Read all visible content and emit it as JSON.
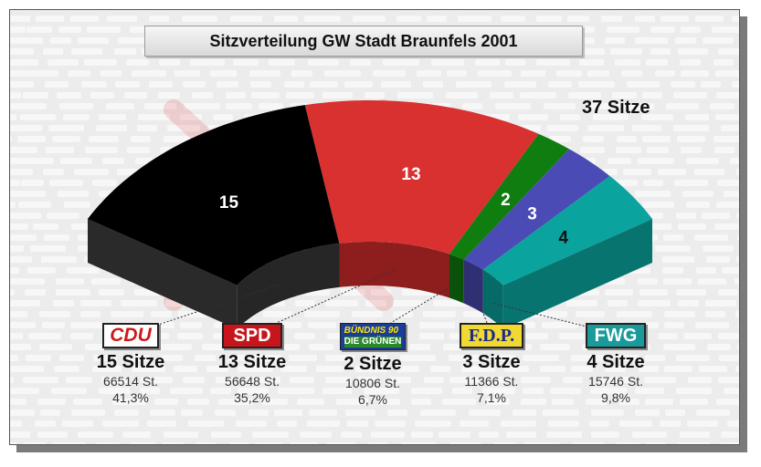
{
  "chart_data": {
    "type": "pie",
    "title": "Sitzverteilung GW Stadt Braunfels 2001",
    "total_label": "37 Sitze",
    "total_seats": 37,
    "parties": [
      {
        "name": "CDU",
        "seats": 15,
        "seats_label": "15 Sitze",
        "votes_label": "66514 St.",
        "pct_label": "41,3%",
        "color": "#000000",
        "side": "#2a2a2a",
        "bottom": "#262626"
      },
      {
        "name": "SPD",
        "seats": 13,
        "seats_label": "13 Sitze",
        "votes_label": "56648 St.",
        "pct_label": "35,2%",
        "color": "#d93030",
        "side": "#9c2020",
        "bottom": "#8e1d1d"
      },
      {
        "name": "BÜNDNIS 90 DIE GRÜNEN",
        "seats": 2,
        "seats_label": "2 Sitze",
        "votes_label": "10806 St.",
        "pct_label": "6,7%",
        "color": "#0f7d0f",
        "side": "#0b5a0b",
        "bottom": "#0a520a"
      },
      {
        "name": "F.D.P.",
        "seats": 3,
        "seats_label": "3 Sitze",
        "votes_label": "11366 St.",
        "pct_label": "7,1%",
        "color": "#4b4bb5",
        "side": "#34347e",
        "bottom": "#2f2f73"
      },
      {
        "name": "FWG",
        "seats": 4,
        "seats_label": "4 Sitze",
        "votes_label": "15746 St.",
        "pct_label": "9,8%",
        "color": "#0aa39e",
        "side": "#077470",
        "bottom": "#066a66"
      }
    ]
  },
  "logos": {
    "cdu": {
      "text": "CDU",
      "bg": "#ffffff",
      "fg": "#cc1a1a"
    },
    "spd": {
      "text": "SPD",
      "bg": "#c8151b",
      "fg": "#ffffff"
    },
    "gruene": {
      "line1": "BÜNDNIS 90",
      "line2": "DIE GRÜNEN",
      "bg": "#1a3d9c",
      "fg1": "#ffe800",
      "fg2": "#ffffff"
    },
    "fdp": {
      "text": "F.D.P.",
      "bg": "#f1d933",
      "fg": "#1a2a8a"
    },
    "fwg": {
      "text": "FWG",
      "bg": "#1a9a9a",
      "fg": "#ffffff"
    }
  }
}
